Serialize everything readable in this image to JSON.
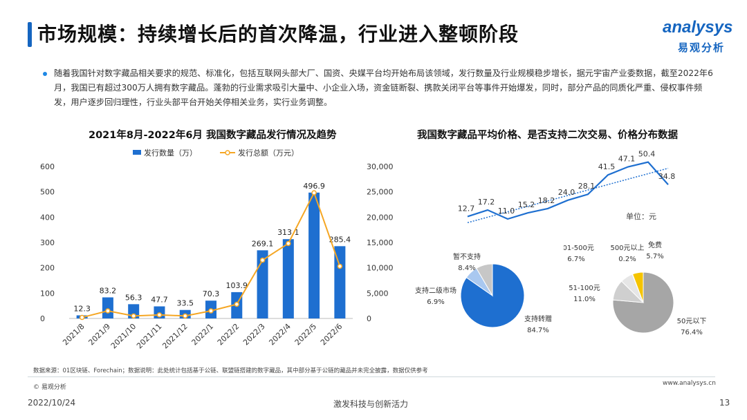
{
  "header": {
    "title": "市场规模：持续增长后的首次降温，行业进入整顿阶段",
    "logo_en": "analysys",
    "logo_cn": "易观分析"
  },
  "intro": {
    "text": "随着我国针对数字藏品相关要求的规范、标准化，包括互联网头部大厂、国资、央媒平台均开始布局该领域，发行数量及行业规模稳步增长，据元宇宙产业委数据，截至2022年6月，我国已有超过300万人拥有数字藏品。蓬勃的行业需求吸引大量中、小企业入场，资金链断裂、携款关闭平台等事件开始爆发，同时，部分产品的同质化严重、侵权事件频发，用户逐步回归理性，行业头部平台开始关停相关业务，实行业务调整。"
  },
  "chart_data": [
    {
      "type": "bar",
      "title": "2021年8月-2022年6月 我国数字藏品发行情况及趋势",
      "categories": [
        "2021/8",
        "2021/9",
        "2021/10",
        "2021/11",
        "2021/12",
        "2022/1",
        "2022/2",
        "2022/3",
        "2022/4",
        "2022/5",
        "2022/6"
      ],
      "series": [
        {
          "name": "发行数量（万）",
          "type": "bar",
          "axis": "left",
          "color": "#1e6fd0",
          "values": [
            12.3,
            83.2,
            56.3,
            47.7,
            33.5,
            70.3,
            103.9,
            269.1,
            313.1,
            496.9,
            285.4
          ]
        },
        {
          "name": "发行总额（万元）",
          "type": "line",
          "axis": "right",
          "color": "#f5a623",
          "values": [
            200,
            1500,
            500,
            700,
            500,
            1500,
            2800,
            11500,
            14800,
            24800,
            10300
          ]
        }
      ],
      "ylim_left": [
        0,
        600
      ],
      "yticks_left": [
        "0",
        "100",
        "200",
        "300",
        "400",
        "500",
        "600"
      ],
      "ylim_right": [
        0,
        30000
      ],
      "yticks_right": [
        "0",
        "5,000",
        "10,000",
        "15,000",
        "20,000",
        "25,000",
        "30,000"
      ],
      "legend_position": "top"
    },
    {
      "type": "line",
      "title": "我国数字藏品平均价格、是否支持二次交易、价格分布数据",
      "unit_label": "单位：元",
      "values": [
        12.7,
        17.2,
        11.0,
        15.2,
        18.2,
        24.0,
        28.1,
        41.5,
        47.1,
        50.4,
        34.8
      ],
      "labels": [
        "12.7",
        "17.2",
        "11.0",
        "15.2",
        "18.2",
        "24.0",
        "28.1",
        "41.5",
        "47.1",
        "50.4",
        "34.8"
      ],
      "trendline": true,
      "color": "#1e6fd0"
    },
    {
      "type": "pie",
      "slices": [
        {
          "label": "支持转赠",
          "value": 84.7,
          "pct": "84.7%",
          "color": "#1e6fd0"
        },
        {
          "label": "支持二级市场",
          "value": 6.9,
          "pct": "6.9%",
          "color": "#a9c8f0"
        },
        {
          "label": "暂不支持",
          "value": 8.4,
          "pct": "8.4%",
          "color": "#c7c7c7"
        }
      ]
    },
    {
      "type": "pie",
      "slices": [
        {
          "label": "50元以下",
          "value": 76.4,
          "pct": "76.4%",
          "color": "#a6a6a6"
        },
        {
          "label": "51-100元",
          "value": 11.0,
          "pct": "11.0%",
          "color": "#cfcfcf"
        },
        {
          "label": "101-500元",
          "value": 6.7,
          "pct": "6.7%",
          "color": "#e6e6e6"
        },
        {
          "label": "500元以上",
          "value": 0.2,
          "pct": "0.2%",
          "color": "#888888"
        },
        {
          "label": "免费",
          "value": 5.7,
          "pct": "5.7%",
          "color": "#f5c400"
        }
      ]
    }
  ],
  "footer": {
    "source": "数据来源：01区块链、Forechain；数据说明：此处统计包括基于公链、联盟链搭建的数字藏品，其中部分基于公链的藏品并未完全披露，数据仅供参考",
    "copyright": "© 易观分析",
    "website": "www.analysys.cn",
    "date": "2022/10/24",
    "slogan": "激发科技与创新活力",
    "page": "13"
  }
}
